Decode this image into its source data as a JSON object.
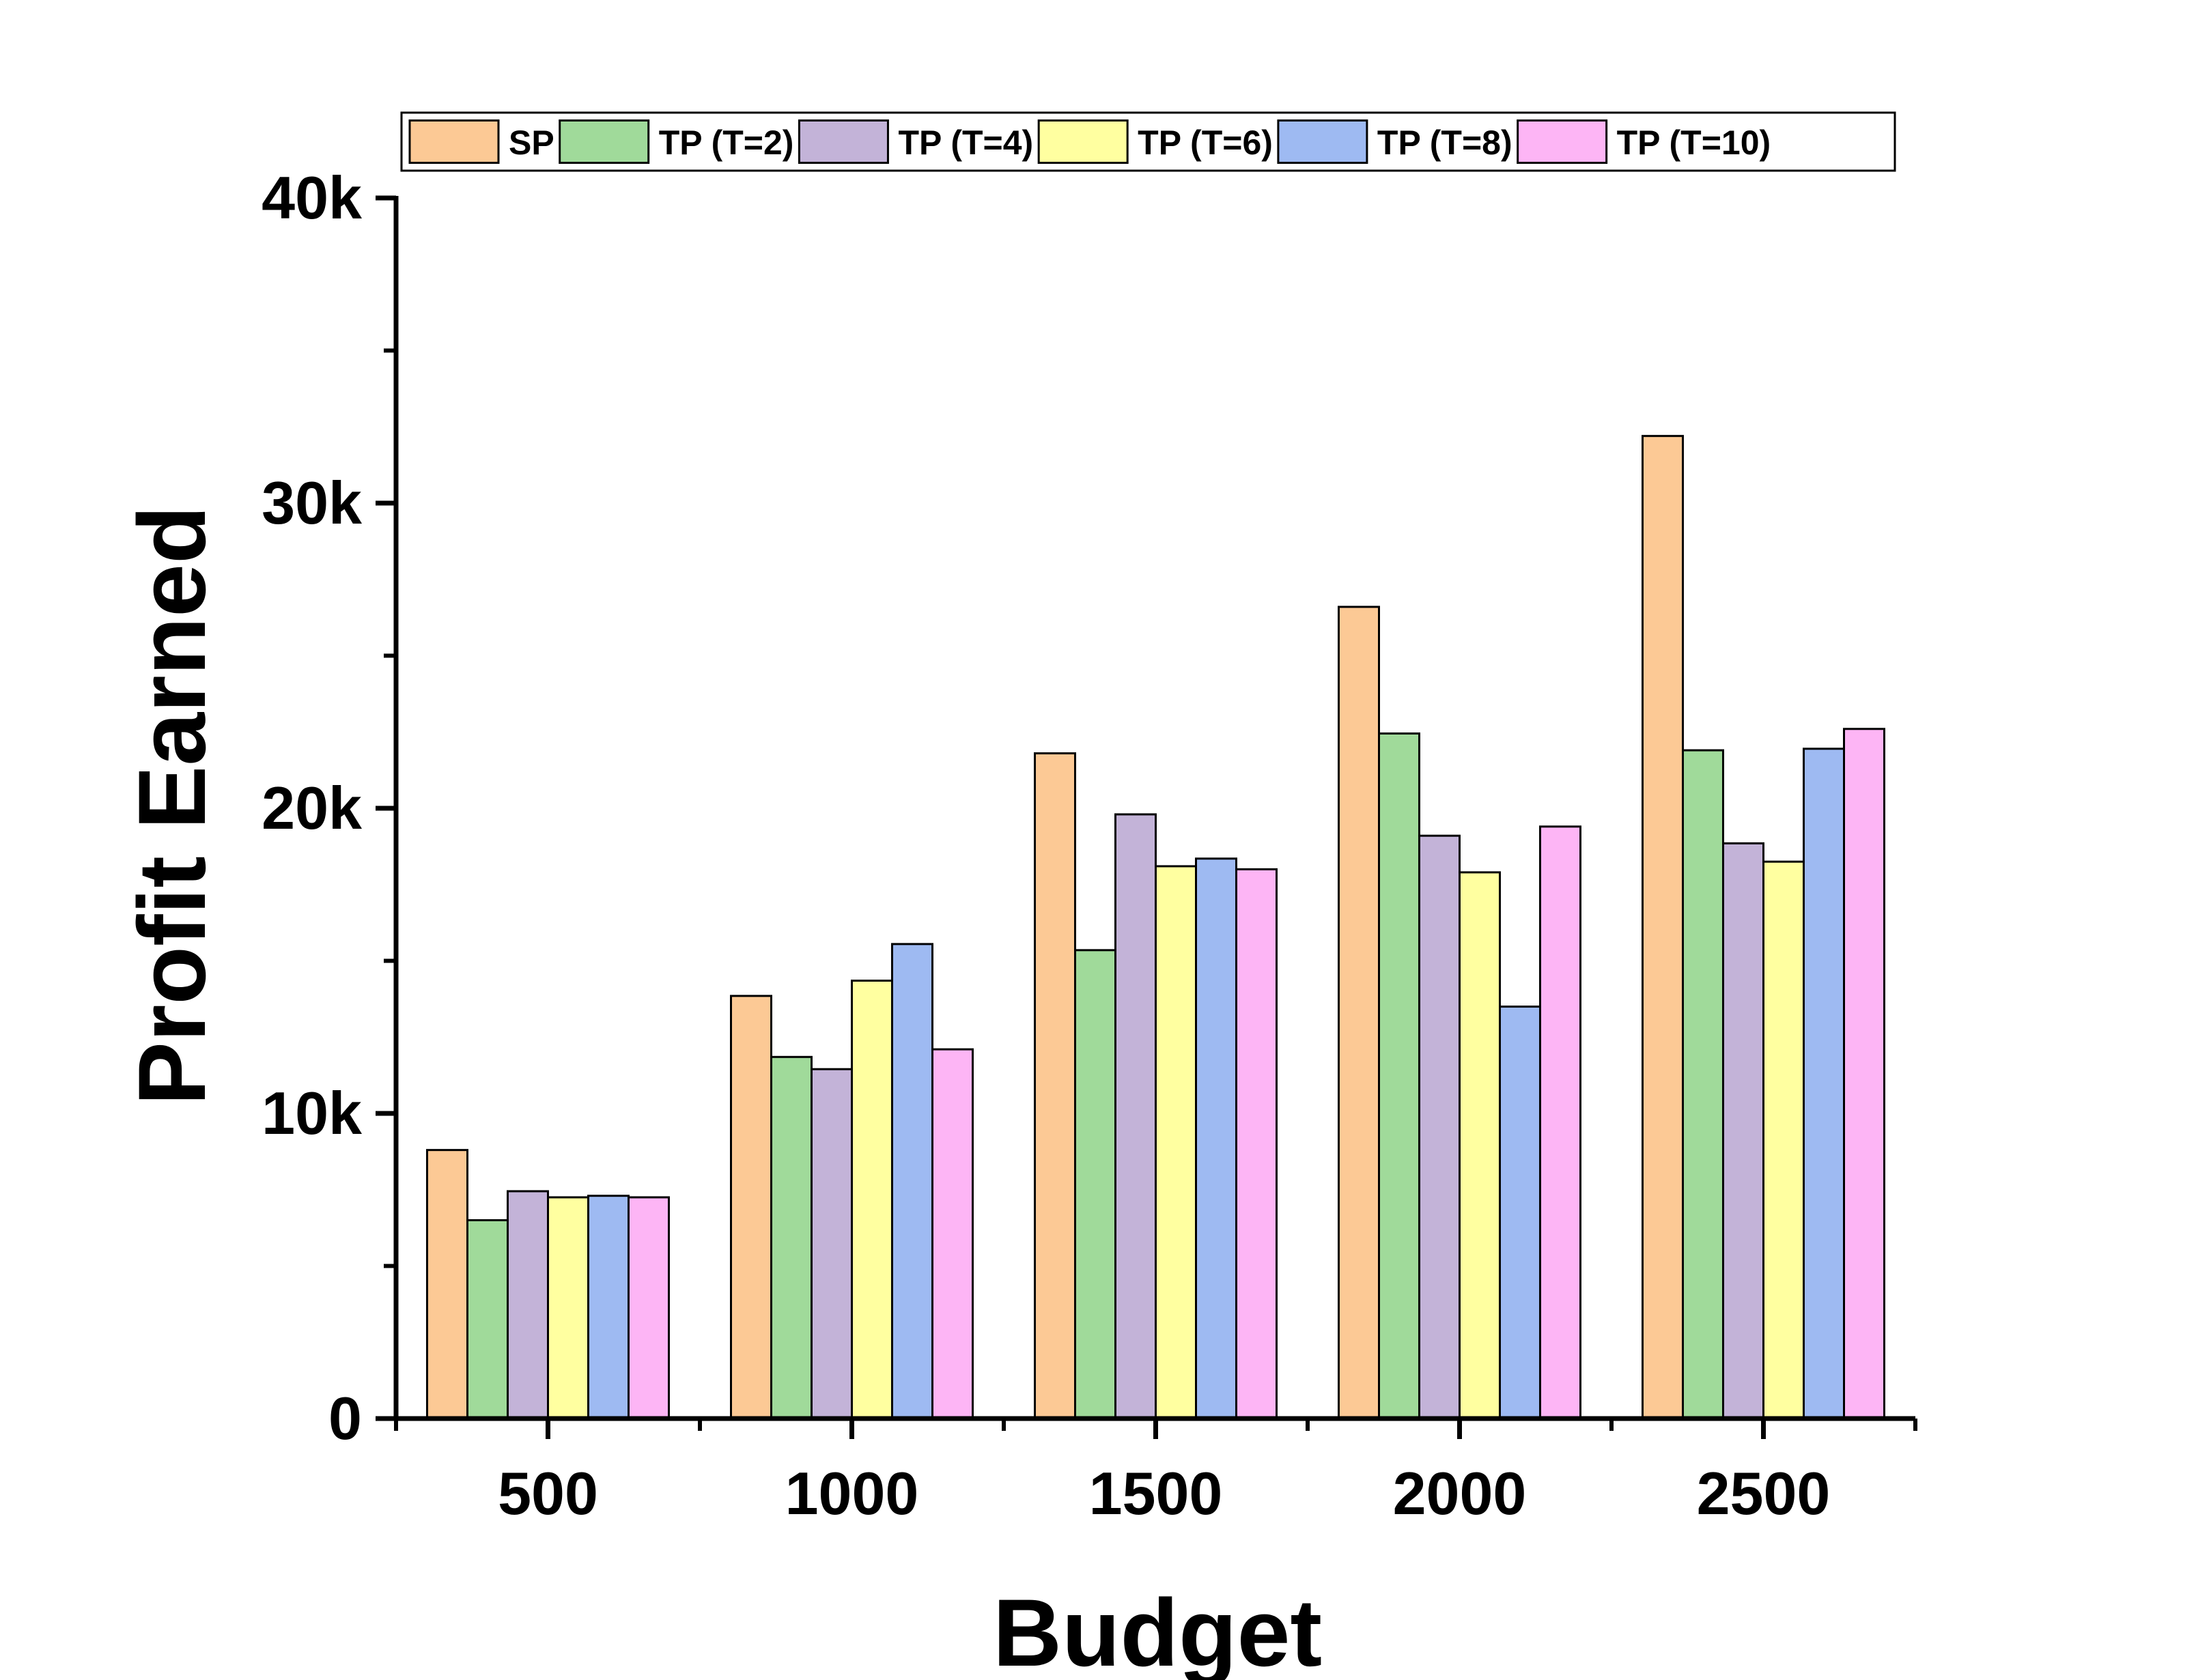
{
  "chart_data": {
    "type": "bar",
    "xlabel": "Budget",
    "ylabel": "Profit Earned",
    "categories": [
      "500",
      "1000",
      "1500",
      "2000",
      "2500"
    ],
    "ylim": [
      0,
      40000
    ],
    "yticks": [
      {
        "value": 0,
        "label": "0"
      },
      {
        "value": 10000,
        "label": "10k"
      },
      {
        "value": 20000,
        "label": "20k"
      },
      {
        "value": 30000,
        "label": "30k"
      },
      {
        "value": 40000,
        "label": "40k"
      }
    ],
    "legend_position": "top",
    "series": [
      {
        "name": "SP",
        "color": "#FCC995",
        "values": [
          8800,
          13850,
          21800,
          26600,
          32200
        ]
      },
      {
        "name": "TP (T=2)",
        "color": "#A0DA9A",
        "values": [
          6500,
          11850,
          15350,
          22450,
          21900
        ]
      },
      {
        "name": "TP (T=4)",
        "color": "#C3B3D8",
        "values": [
          7450,
          11450,
          19800,
          19100,
          18850
        ]
      },
      {
        "name": "TP (T=6)",
        "color": "#FFFFA0",
        "values": [
          7250,
          14350,
          18100,
          17900,
          18250
        ]
      },
      {
        "name": "TP (T=8)",
        "color": "#9EBAF2",
        "values": [
          7300,
          15550,
          18350,
          13500,
          21950
        ]
      },
      {
        "name": "TP (T=10)",
        "color": "#FDB5F5",
        "values": [
          7250,
          12100,
          18000,
          19400,
          22600
        ]
      }
    ]
  }
}
